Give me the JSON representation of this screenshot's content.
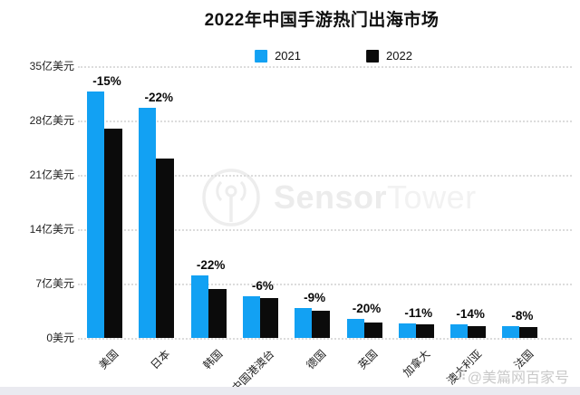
{
  "title": "2022年中国手游热门出海市场",
  "legend": [
    {
      "label": "2021",
      "color": "#12A1F3"
    },
    {
      "label": "2022",
      "color": "#0b0b0b"
    }
  ],
  "brand_watermark": {
    "bold": "Sensor",
    "light": "Tower"
  },
  "credit_watermark": {
    "icon": "⠿",
    "text": "@美篇网百家号"
  },
  "colors": {
    "blue": "#12A1F3",
    "black": "#0b0b0b",
    "grid": "#dcdcdc",
    "watermark_gray": "#ececec"
  },
  "chart_data": {
    "type": "bar",
    "title": "2022年中国手游热门出海市场",
    "unit": "亿美元",
    "categories": [
      "美国",
      "日本",
      "韩国",
      "中国港澳台",
      "德国",
      "英国",
      "加拿大",
      "澳大利亚",
      "法国"
    ],
    "series": [
      {
        "name": "2021",
        "color": "#12A1F3",
        "values": [
          31.7,
          29.6,
          8.1,
          5.4,
          3.9,
          2.5,
          1.9,
          1.8,
          1.5
        ]
      },
      {
        "name": "2022",
        "color": "#0b0b0b",
        "values": [
          27.0,
          23.1,
          6.3,
          5.1,
          3.5,
          2.0,
          1.7,
          1.5,
          1.4
        ]
      }
    ],
    "change_labels": [
      "-15%",
      "-22%",
      "-22%",
      "-6%",
      "-9%",
      "-20%",
      "-11%",
      "-14%",
      "-8%"
    ],
    "y_ticks": [
      "35亿美元",
      "28亿美元",
      "21亿美元",
      "14亿美元",
      "7亿美元",
      "0美元"
    ],
    "ylim": [
      0,
      35
    ],
    "grid": "dotted-horizontal",
    "legend_position": "top-center"
  }
}
